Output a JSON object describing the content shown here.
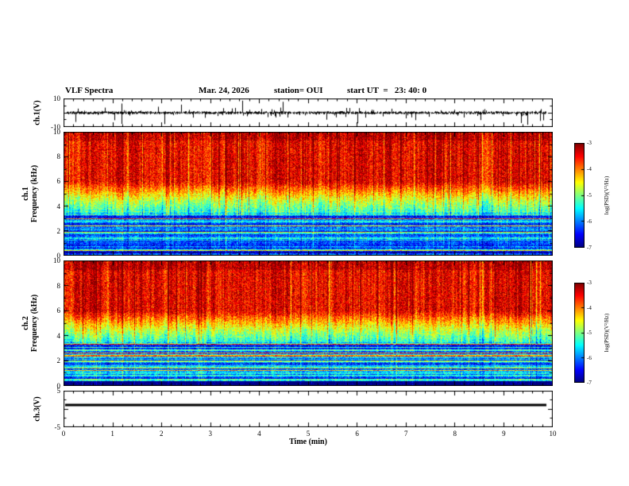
{
  "header": {
    "title": "VLF Spectra",
    "date": "Mar. 24, 2026",
    "station": "station= OUI",
    "start_ut": "start UT  =   23: 40: 0"
  },
  "panels": {
    "ch1_wave": {
      "ylabel": "ch.1(V)",
      "yticks": [
        "10",
        "-10"
      ]
    },
    "ch1_spec": {
      "ylabel_ch": "ch.1",
      "ylabel_freq": "Frequency (kHz)",
      "yticks": [
        "10",
        "8",
        "6",
        "4",
        "2",
        "0"
      ]
    },
    "ch2_spec": {
      "ylabel_ch": "ch.2",
      "ylabel_freq": "Frequency (kHz)",
      "yticks": [
        "10",
        "8",
        "6",
        "4",
        "2",
        "0"
      ]
    },
    "ch3_wave": {
      "ylabel": "ch.3(V)",
      "yticks": [
        "5",
        "-5"
      ]
    }
  },
  "xaxis": {
    "label": "Time (min)",
    "ticks": [
      "0",
      "1",
      "2",
      "3",
      "4",
      "5",
      "6",
      "7",
      "8",
      "9",
      "10"
    ]
  },
  "colorbar": {
    "label": "log(PSD)(V²/Hz)",
    "ticks": [
      "-3",
      "-4",
      "-5",
      "-6",
      "-7"
    ]
  },
  "chart_data": [
    {
      "id": "ch1_wave",
      "type": "line",
      "title": "ch.1 voltage waveform",
      "x_range_min": [
        0,
        10
      ],
      "y_range_V": [
        -10,
        10
      ],
      "summary": "dense noise trace centered on 0 V with frequent impulsive spikes reaching toward ±10 V"
    },
    {
      "id": "ch1_spec",
      "type": "heatmap",
      "title": "ch.1 VLF spectrogram",
      "x_range_min": [
        0,
        10
      ],
      "y_range_khz": [
        0,
        10
      ],
      "color_scale_log_psd": [
        -7,
        -3
      ],
      "colormap": "jet",
      "summary": "red/orange broadband power above ~5 kHz with vertical streaking, green-cyan transition 3-5 kHz, blue background below 3 kHz with persistent horizontal spectral lines"
    },
    {
      "id": "ch2_spec",
      "type": "heatmap",
      "title": "ch.2 VLF spectrogram",
      "x_range_min": [
        0,
        10
      ],
      "y_range_khz": [
        0,
        10
      ],
      "color_scale_log_psd": [
        -7,
        -3
      ],
      "colormap": "jet",
      "summary": "same structure as ch.1: red/orange above ~5 kHz, green-cyan 3-5 kHz, blue with horizontal line structure below 3 kHz"
    },
    {
      "id": "ch3_wave",
      "type": "line",
      "title": "ch.3 voltage",
      "x_range_min": [
        0,
        10
      ],
      "y_range_V": [
        -5,
        5
      ],
      "constant_value_V": 1,
      "summary": "flat thick trace near +1 V across entire interval"
    }
  ]
}
